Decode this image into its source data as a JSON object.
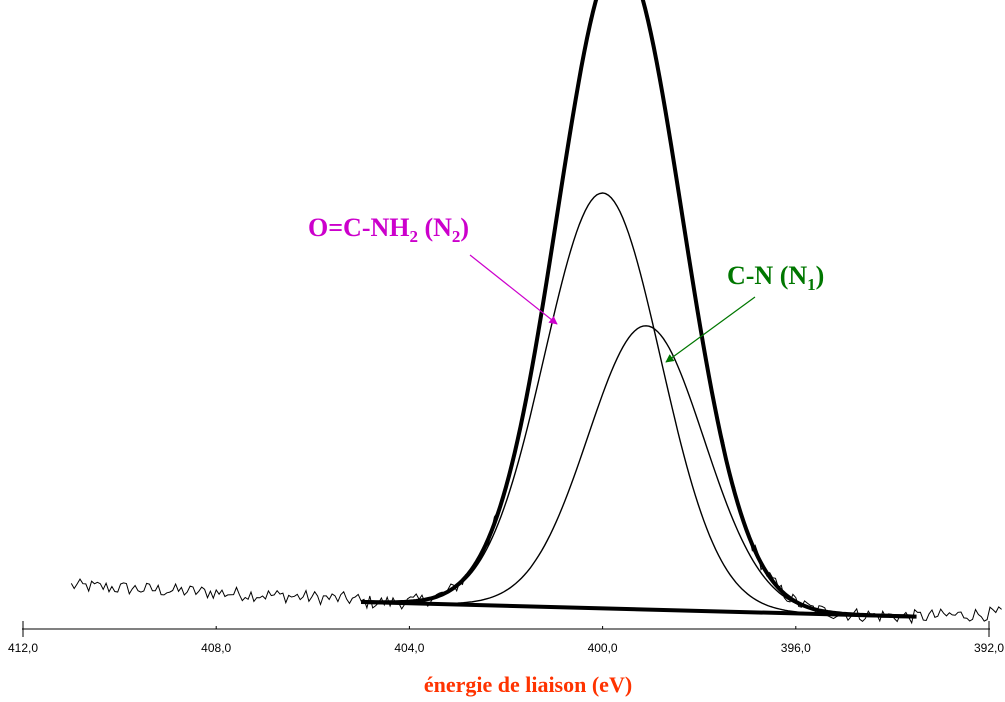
{
  "chart_data": {
    "type": "line",
    "xlabel": "énergie de liaison (eV)",
    "x_reversed": true,
    "xlim": [
      412.0,
      391.5
    ],
    "ticks": [
      {
        "value": 412.0,
        "label": "412,0"
      },
      {
        "value": 408.0,
        "label": "408,0"
      },
      {
        "value": 404.0,
        "label": "404,0"
      },
      {
        "value": 400.0,
        "label": "400,0"
      },
      {
        "value": 396.0,
        "label": "396,0"
      },
      {
        "value": 392.0,
        "label": "392,0"
      }
    ],
    "ylim": [
      0,
      1.0
    ],
    "y_axis_visible": false,
    "baseline": {
      "x": [
        405.0,
        393.5
      ],
      "y": [
        0.0,
        -0.025
      ]
    },
    "components": [
      {
        "center": 400.0,
        "height": 0.71,
        "sigma": 1.2
      },
      {
        "center": 399.1,
        "height": 0.485,
        "sigma": 1.2
      }
    ],
    "noise_amplitude": 0.012,
    "annotations": [
      {
        "text": "O=C-NH",
        "sub1": "2",
        "mid": " (N",
        "sub2": "2",
        "end": ")",
        "color": "#cc00cc",
        "points_to": {
          "x": 401.5,
          "y": 0.52
        }
      },
      {
        "text": "C-N (N",
        "sub1": "1",
        "end": ")",
        "color": "#007700",
        "points_to": {
          "x": 398.7,
          "y": 0.42
        }
      }
    ],
    "colors": {
      "xlabel": "#ff3300",
      "curves": "#000000"
    }
  }
}
